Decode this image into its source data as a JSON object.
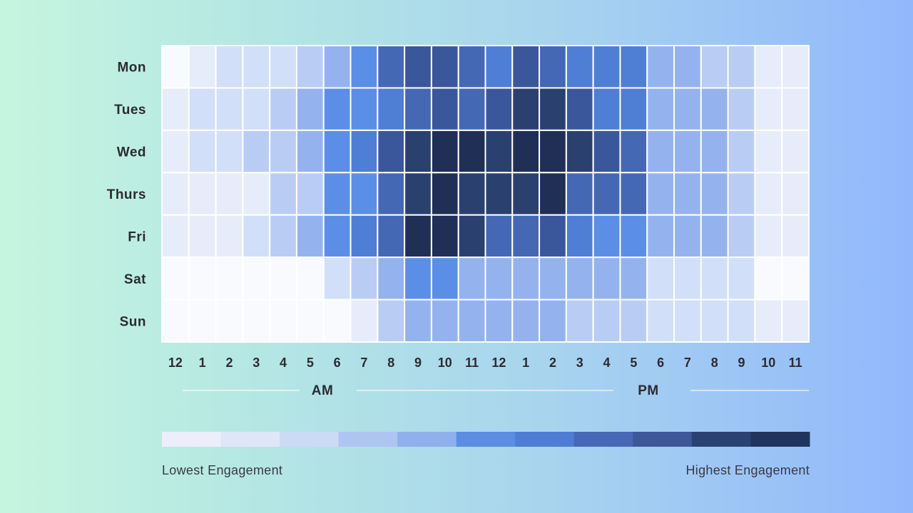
{
  "chart_data": {
    "type": "heatmap",
    "title": "",
    "days": [
      "Mon",
      "Tues",
      "Wed",
      "Thurs",
      "Fri",
      "Sat",
      "Sun"
    ],
    "hours": [
      "12",
      "1",
      "2",
      "3",
      "4",
      "5",
      "6",
      "7",
      "8",
      "9",
      "10",
      "11",
      "12",
      "1",
      "2",
      "3",
      "4",
      "5",
      "6",
      "7",
      "8",
      "9",
      "10",
      "11"
    ],
    "periods": [
      "AM",
      "PM"
    ],
    "scale_levels": 11,
    "values": [
      [
        0,
        1,
        2,
        2,
        2,
        3,
        4,
        5,
        7,
        8,
        8,
        7,
        6,
        8,
        7,
        6,
        6,
        6,
        4,
        4,
        3,
        3,
        1,
        1
      ],
      [
        1,
        2,
        2,
        2,
        3,
        4,
        5,
        5,
        6,
        7,
        8,
        7,
        8,
        9,
        9,
        8,
        6,
        6,
        4,
        4,
        4,
        3,
        1,
        1
      ],
      [
        1,
        2,
        2,
        3,
        3,
        4,
        5,
        6,
        8,
        9,
        10,
        10,
        9,
        10,
        10,
        9,
        8,
        7,
        4,
        4,
        4,
        3,
        1,
        1
      ],
      [
        1,
        1,
        1,
        1,
        3,
        3,
        5,
        5,
        7,
        9,
        10,
        9,
        9,
        9,
        10,
        7,
        7,
        7,
        4,
        4,
        4,
        3,
        1,
        1
      ],
      [
        1,
        1,
        1,
        2,
        3,
        4,
        5,
        6,
        7,
        10,
        10,
        9,
        7,
        7,
        8,
        6,
        5,
        5,
        4,
        4,
        4,
        3,
        1,
        1
      ],
      [
        0,
        0,
        0,
        0,
        0,
        0,
        2,
        3,
        4,
        5,
        5,
        4,
        4,
        4,
        4,
        4,
        4,
        4,
        2,
        2,
        2,
        2,
        0,
        0
      ],
      [
        0,
        0,
        0,
        0,
        0,
        0,
        0,
        1,
        3,
        4,
        4,
        4,
        4,
        4,
        4,
        3,
        3,
        3,
        2,
        2,
        2,
        2,
        1,
        1
      ]
    ],
    "palette": [
      "#f8fafe",
      "#e6ecfa",
      "#d2dff8",
      "#b9cdf4",
      "#94b3ee",
      "#5b8ee6",
      "#4f7ed5",
      "#4468b4",
      "#3b579b",
      "#2a406f",
      "#1f2f56"
    ],
    "legend": {
      "colors": [
        "#eceffb",
        "#dfe6f8",
        "#ccdaf6",
        "#aec5f2",
        "#8fb0ec",
        "#5b8de3",
        "#4f7cd4",
        "#4668b6",
        "#3d5799",
        "#2a4272",
        "#21345d"
      ],
      "low_label": "Lowest Engagement",
      "high_label": "Highest Engagement"
    }
  }
}
